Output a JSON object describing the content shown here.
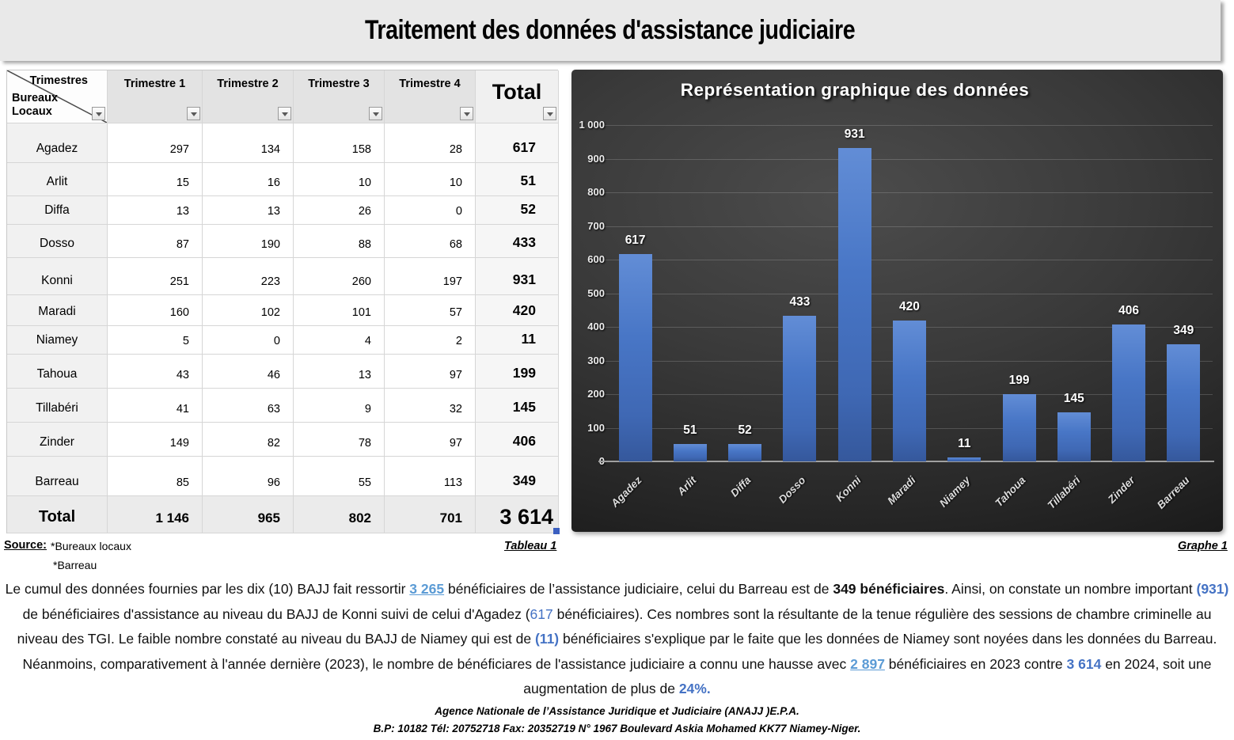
{
  "page": {
    "title": "Traitement des données d'assistance judiciaire"
  },
  "table": {
    "corner": {
      "top_label": "Trimestres",
      "left_label_line1": "Bureaux",
      "left_label_line2": "Locaux"
    },
    "columns": [
      "Trimestre 1",
      "Trimestre 2",
      "Trimestre 3",
      "Trimestre 4"
    ],
    "total_label": "Total",
    "rows": [
      {
        "label": "Agadez",
        "values": [
          "297",
          "134",
          "158",
          "28"
        ],
        "total": "617"
      },
      {
        "label": "Arlit",
        "values": [
          "15",
          "16",
          "10",
          "10"
        ],
        "total": "51"
      },
      {
        "label": "Diffa",
        "values": [
          "13",
          "13",
          "26",
          "0"
        ],
        "total": "52"
      },
      {
        "label": "Dosso",
        "values": [
          "87",
          "190",
          "88",
          "68"
        ],
        "total": "433"
      },
      {
        "label": "Konni",
        "values": [
          "251",
          "223",
          "260",
          "197"
        ],
        "total": "931"
      },
      {
        "label": "Maradi",
        "values": [
          "160",
          "102",
          "101",
          "57"
        ],
        "total": "420"
      },
      {
        "label": "Niamey",
        "values": [
          "5",
          "0",
          "4",
          "2"
        ],
        "total": "11"
      },
      {
        "label": "Tahoua",
        "values": [
          "43",
          "46",
          "13",
          "97"
        ],
        "total": "199"
      },
      {
        "label": "Tillabéri",
        "values": [
          "41",
          "63",
          "9",
          "32"
        ],
        "total": "145"
      },
      {
        "label": "Zinder",
        "values": [
          "149",
          "82",
          "78",
          "97"
        ],
        "total": "406"
      },
      {
        "label": "Barreau",
        "values": [
          "85",
          "96",
          "55",
          "113"
        ],
        "total": "349"
      }
    ],
    "total_row": {
      "label": "Total",
      "values": [
        "1 146",
        "965",
        "802",
        "701"
      ],
      "total": "3 614"
    }
  },
  "chart_data": {
    "type": "bar",
    "title": "Représentation graphique des données",
    "categories": [
      "Agadez",
      "Arlit",
      "Diffa",
      "Dosso",
      "Konni",
      "Maradi",
      "Niamey",
      "Tahoua",
      "Tillabéri",
      "Zinder",
      "Barreau"
    ],
    "values": [
      617,
      51,
      52,
      433,
      931,
      420,
      11,
      199,
      145,
      406,
      349
    ],
    "xlabel": "",
    "ylabel": "",
    "ylim": [
      0,
      1000
    ],
    "ytick_labels": [
      "0",
      "100",
      "200",
      "300",
      "400",
      "500",
      "600",
      "700",
      "800",
      "900",
      "1 000"
    ],
    "grid": true,
    "legend_position": "none",
    "bar_color": "#4472C4",
    "label_color": "#ffffff",
    "background": "dark-gradient"
  },
  "source": {
    "label": "Source:",
    "items": [
      "*Bureaux locaux",
      "*Barreau"
    ]
  },
  "captions": {
    "table": "Tableau 1",
    "graph": "Graphe 1"
  },
  "analysis": {
    "segments": [
      {
        "t": "Le cumul des données fournies par les dix (10) BAJJ fait ressortir "
      },
      {
        "t": "3 265",
        "s": "blue-underline"
      },
      {
        "t": " bénéficiaires de l’assistance judiciaire, celui du Barreau est de "
      },
      {
        "t": "349 bénéficiaires",
        "s": "bold"
      },
      {
        "t": ". Ainsi, on constate un nombre important "
      },
      {
        "t": "(931)",
        "s": "blue-bold"
      },
      {
        "t": " de bénéficiaires d'assistance au niveau du BAJJ de Konni suivi de celui d'Agadez ("
      },
      {
        "t": "617",
        "s": "blue"
      },
      {
        "t": " bénéficiaires). Ces nombres sont la résultante de la tenue régulière des sessions de chambre criminelle au niveau des TGI. Le faible nombre constaté au niveau du BAJJ de Niamey qui est de "
      },
      {
        "t": "(11)",
        "s": "blue-bold"
      },
      {
        "t": " bénéficiaires s'explique par le faite que les données de Niamey sont noyées dans les données du Barreau. Néanmoins, comparativement à l'année dernière (2023), le nombre de bénéficiares de l'assistance judiciaire a connu une hausse avec "
      },
      {
        "t": "2 897",
        "s": "blue-underline"
      },
      {
        "t": " bénéficiaires en 2023 contre "
      },
      {
        "t": "3 614",
        "s": "blue-bold"
      },
      {
        "t": " en 2024, soit une augmentation de plus de "
      },
      {
        "t": "24%.",
        "s": "blue-bold"
      }
    ]
  },
  "footer": {
    "line1": "Agence Nationale de l’Assistance Juridique et Judiciaire (ANAJJ )E.P.A.",
    "line2": "B.P: 10182 Tél: 20752718 Fax: 20352719 N° 1967 Boulevard Askia Mohamed KK77 Niamey-Niger."
  },
  "colors": {
    "accent_blue": "#4472C4",
    "link_blue": "#5B9BD5"
  }
}
